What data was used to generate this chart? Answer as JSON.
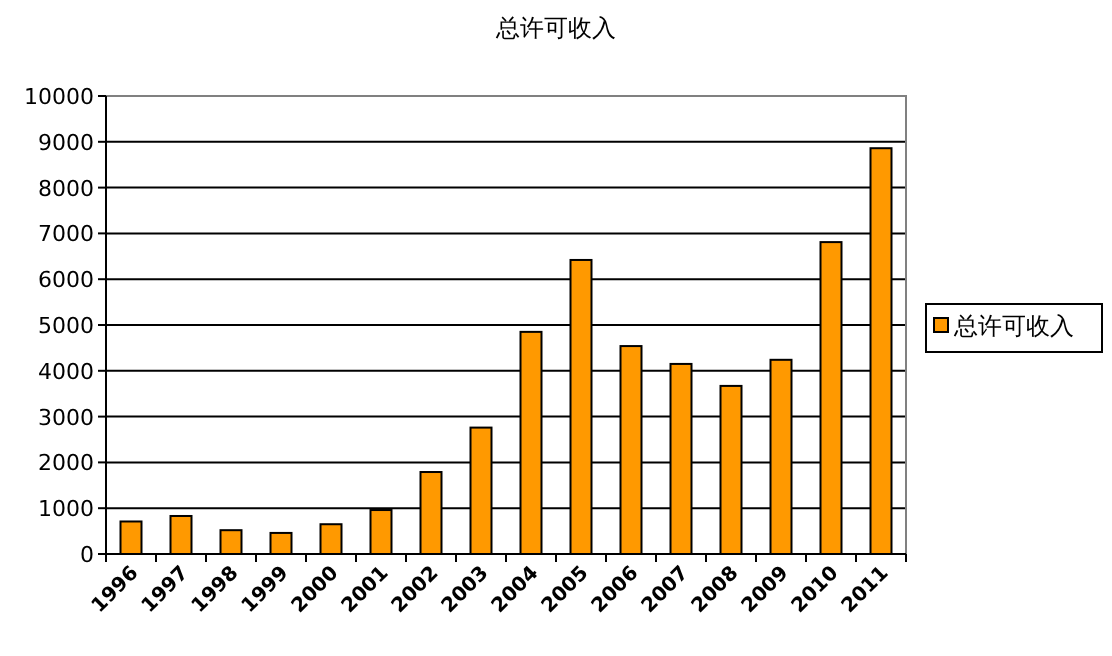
{
  "chart_data": {
    "type": "bar",
    "title": "总许可收入",
    "categories": [
      "1996",
      "1997",
      "1998",
      "1999",
      "2000",
      "2001",
      "2002",
      "2003",
      "2004",
      "2005",
      "2006",
      "2007",
      "2008",
      "2009",
      "2010",
      "2011"
    ],
    "series": [
      {
        "name": "总许可收入",
        "color": "#ff9900",
        "values": [
          710,
          830,
          520,
          460,
          650,
          960,
          1790,
          2760,
          4850,
          6420,
          4540,
          4150,
          3670,
          4240,
          6810,
          8860
        ]
      }
    ],
    "ylim": [
      0,
      10000
    ],
    "yticks": [
      0,
      1000,
      2000,
      3000,
      4000,
      5000,
      6000,
      7000,
      8000,
      9000,
      10000
    ],
    "grid": "y",
    "legend": "right"
  }
}
